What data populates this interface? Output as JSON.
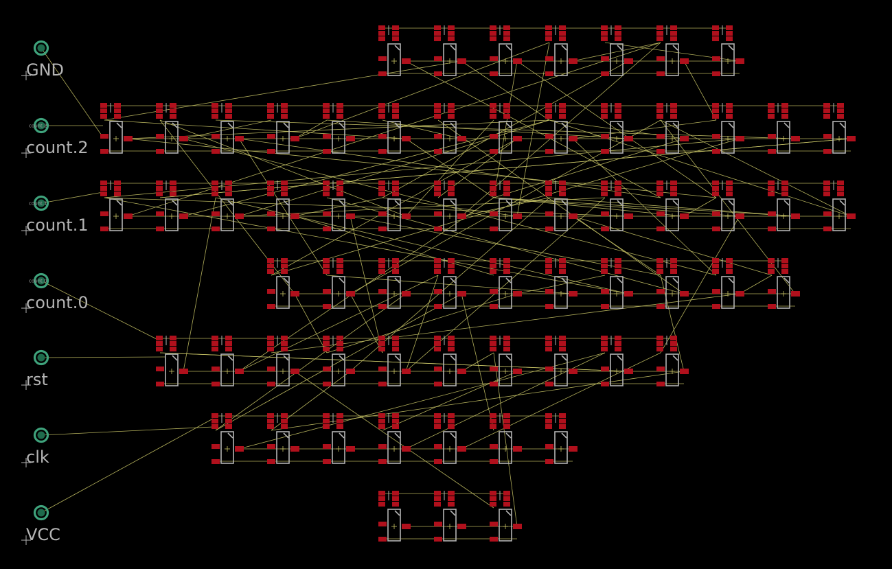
{
  "board": {
    "background": "#000000",
    "pad_color": "#b0101c",
    "outline_color": "#b4b4b4",
    "airwire_color": "#c8c466",
    "pin_color": "#3fa37c"
  },
  "pins": [
    {
      "id": "gnd",
      "label": "GND",
      "small": ""
    },
    {
      "id": "count2",
      "label": "count.2",
      "small": "count.2"
    },
    {
      "id": "count1",
      "label": "count.1",
      "small": "count.1"
    },
    {
      "id": "count0",
      "label": "count.0",
      "small": "count.0"
    },
    {
      "id": "rst",
      "label": "rst",
      "small": ""
    },
    {
      "id": "clk",
      "label": "clk",
      "small": ""
    },
    {
      "id": "vcc",
      "label": "VCC",
      "small": ""
    }
  ],
  "cell_rows": [
    {
      "row": 0,
      "cols": [
        6,
        7,
        8,
        9,
        10,
        11,
        12
      ]
    },
    {
      "row": 1,
      "cols": [
        1,
        2,
        3,
        4,
        5,
        6,
        7,
        8,
        9,
        10,
        11,
        12,
        13,
        14
      ]
    },
    {
      "row": 2,
      "cols": [
        1,
        2,
        3,
        4,
        5,
        6,
        7,
        8,
        9,
        10,
        11,
        12,
        13,
        14
      ]
    },
    {
      "row": 3,
      "cols": [
        4,
        5,
        6,
        7,
        8,
        9,
        10,
        11,
        12,
        13
      ]
    },
    {
      "row": 4,
      "cols": [
        2,
        3,
        4,
        5,
        6,
        7,
        8,
        9,
        10,
        11
      ]
    },
    {
      "row": 5,
      "cols": [
        3,
        4,
        5,
        6,
        7,
        8,
        9
      ]
    },
    {
      "row": 6,
      "cols": [
        6,
        7,
        8
      ]
    }
  ]
}
